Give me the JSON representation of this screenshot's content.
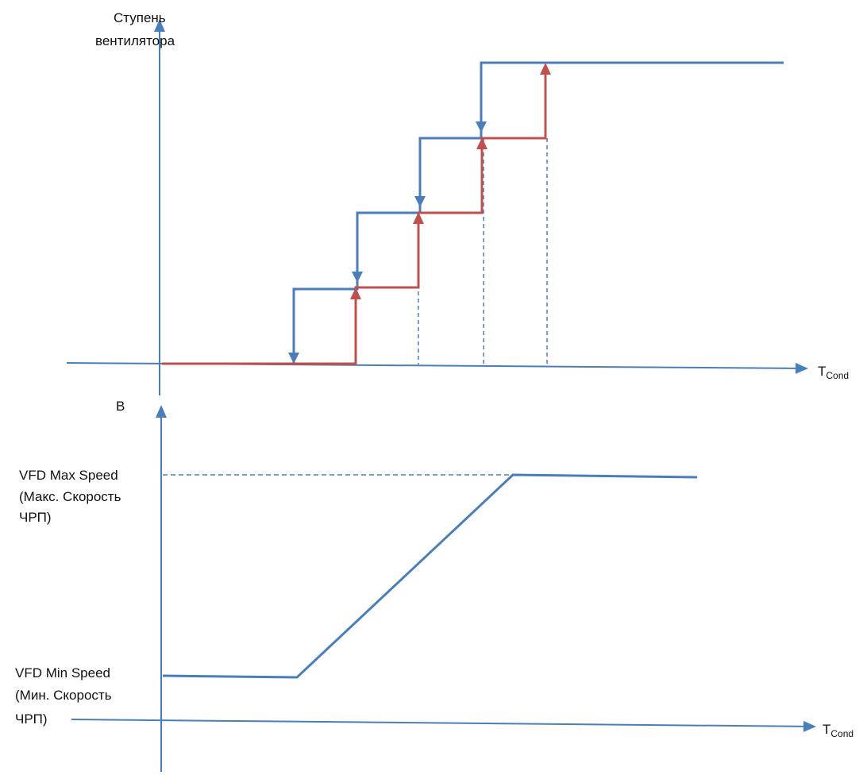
{
  "top_chart": {
    "y_label_line1": "Ступень",
    "y_label_line2": "вентилятора",
    "x_label_main": "T",
    "x_label_sub": "Cond"
  },
  "bottom_chart": {
    "y_label": "В",
    "x_label_main": "T",
    "x_label_sub": "Cond",
    "max_label_line1": "VFD Max Speed",
    "max_label_line2": "(Макс. Скорость",
    "max_label_line3": "ЧРП)",
    "min_label_line1": "VFD Min Speed",
    "min_label_line2": "(Мин. Скорость",
    "min_label_line3": "ЧРП)"
  },
  "colors": {
    "axis": "#4a7ebb",
    "staging_up": "#c0504d",
    "staging_down": "#4a7ebb",
    "vfd_line": "#4a7ebb",
    "guide_dashes": "#4a7ebb"
  }
}
